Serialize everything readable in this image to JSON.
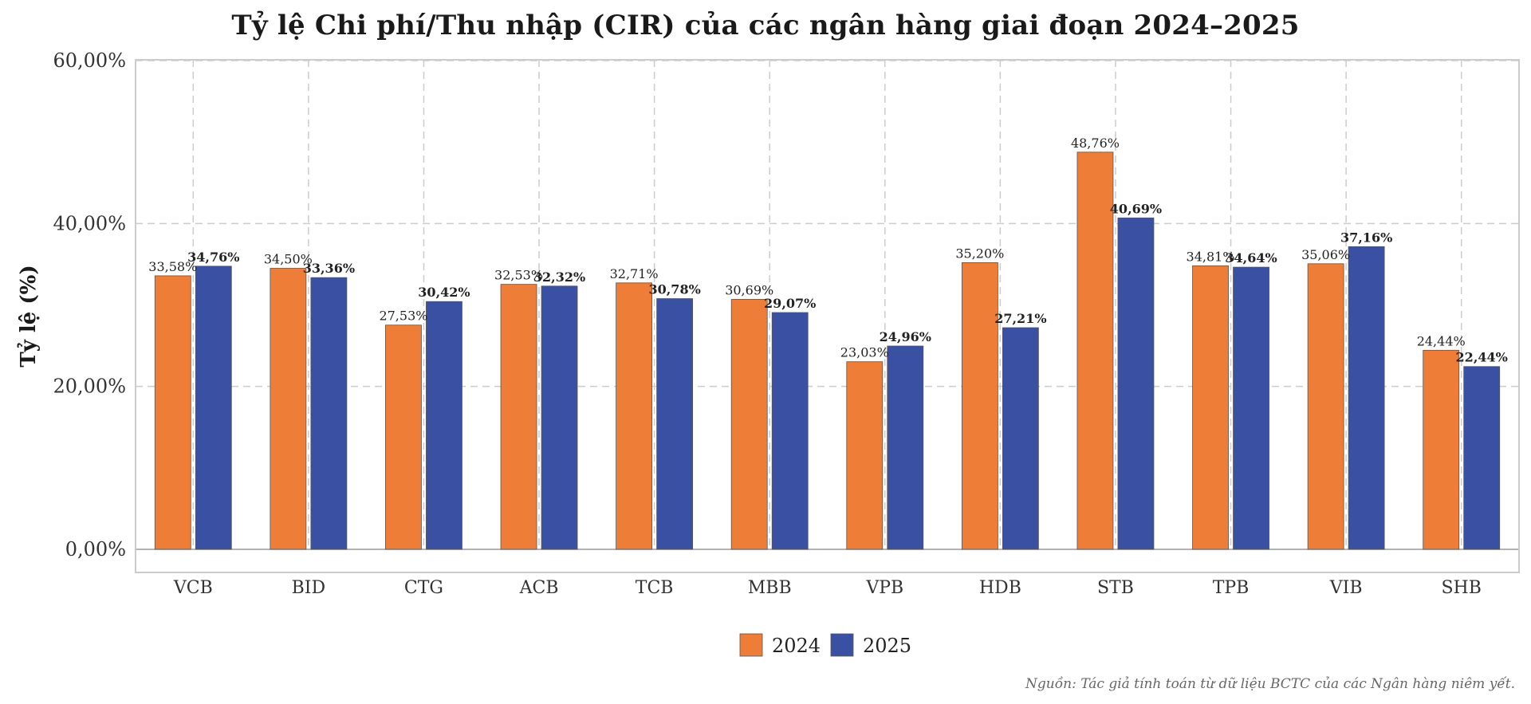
{
  "chart_data": {
    "type": "bar",
    "title": "Tỷ lệ Chi phí/Thu nhập (CIR) của các ngân hàng giai đoạn 2024–2025",
    "xlabel": "",
    "ylabel": "Tỷ lệ (%)",
    "categories": [
      "VCB",
      "BID",
      "CTG",
      "ACB",
      "TCB",
      "MBB",
      "VPB",
      "HDB",
      "STB",
      "TPB",
      "VIB",
      "SHB"
    ],
    "series": [
      {
        "name": "2024",
        "color": "#ED7D37",
        "values": [
          33.58,
          34.5,
          27.53,
          32.53,
          32.71,
          30.69,
          23.03,
          35.2,
          48.76,
          34.81,
          35.06,
          24.44
        ],
        "labels": [
          "33,58%",
          "34,50%",
          "27,53%",
          "32,53%",
          "32,71%",
          "30,69%",
          "23,03%",
          "35,20%",
          "48,76%",
          "34,81%",
          "35,06%",
          "24,44%"
        ]
      },
      {
        "name": "2025",
        "color": "#3A51A3",
        "values": [
          34.76,
          33.36,
          30.42,
          32.32,
          30.78,
          29.07,
          24.96,
          27.21,
          40.69,
          34.64,
          37.16,
          22.44
        ],
        "labels": [
          "34,76%",
          "33,36%",
          "30,42%",
          "32,32%",
          "30,78%",
          "29,07%",
          "24,96%",
          "27,21%",
          "40,69%",
          "34,64%",
          "37,16%",
          "22,44%"
        ]
      }
    ],
    "ylim": [
      0,
      60
    ],
    "yticks": [
      0,
      20,
      40,
      60
    ],
    "ytick_labels": [
      "0,00%",
      "20,00%",
      "40,00%",
      "60,00%"
    ],
    "grid": true,
    "legend_position": "bottom-center",
    "source_note": "Nguồn: Tác giả tính toán từ dữ liệu BCTC của các Ngân hàng niêm yết."
  }
}
